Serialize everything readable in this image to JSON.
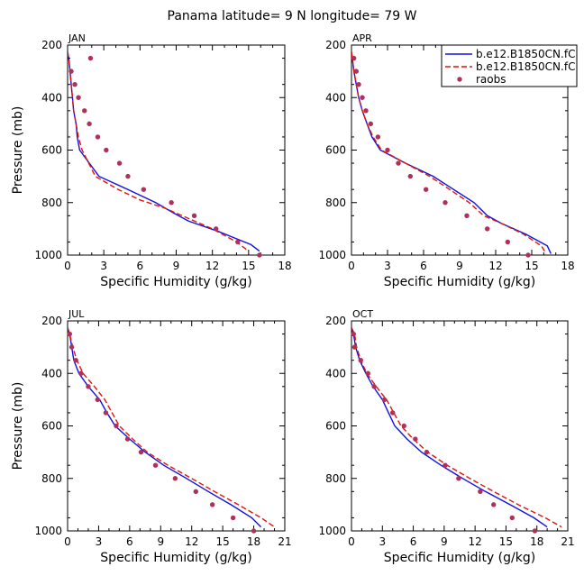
{
  "figure": {
    "title": "Panama  latitude= 9 N longitude= 79 W"
  },
  "colors": {
    "model1": "#1010e0",
    "model2": "#e0140a",
    "raobs": "#b0305a"
  },
  "legend": {
    "items": [
      {
        "label": "b.e12.B1850CN.fC",
        "style": "solid",
        "color": "#1010e0"
      },
      {
        "label": "b.e12.B1850CN.fC",
        "style": "dashed",
        "color": "#e0140a"
      },
      {
        "label": "raobs",
        "style": "dot",
        "color": "#b0305a"
      }
    ]
  },
  "chart_data": [
    {
      "type": "line",
      "panel_label": "JAN",
      "xlabel": "Specific Humidity (g/kg)",
      "ylabel": "Pressure (mb)",
      "xlim": [
        0,
        18
      ],
      "xticks": [
        0,
        3,
        6,
        9,
        12,
        15,
        18
      ],
      "ylim": [
        1000,
        200
      ],
      "yticks": [
        200,
        400,
        600,
        800,
        1000
      ],
      "series": [
        {
          "name": "b.e12.B1850CN.fC",
          "style": "solid",
          "color": "#1010e0",
          "points": [
            [
              0.0,
              225
            ],
            [
              0.1,
              250
            ],
            [
              0.2,
              300
            ],
            [
              0.3,
              350
            ],
            [
              0.4,
              400
            ],
            [
              0.5,
              450
            ],
            [
              0.7,
              500
            ],
            [
              0.8,
              550
            ],
            [
              1.0,
              600
            ],
            [
              2.6,
              700
            ],
            [
              5.0,
              750
            ],
            [
              7.3,
              800
            ],
            [
              8.8,
              840
            ],
            [
              10.0,
              870
            ],
            [
              12.5,
              910
            ],
            [
              15.2,
              960
            ],
            [
              15.9,
              985
            ]
          ]
        },
        {
          "name": "b.e12.B1850CN.fC",
          "style": "dashed",
          "color": "#e0140a",
          "points": [
            [
              0.0,
              225
            ],
            [
              0.1,
              250
            ],
            [
              0.2,
              300
            ],
            [
              0.3,
              350
            ],
            [
              0.4,
              400
            ],
            [
              0.5,
              450
            ],
            [
              0.7,
              500
            ],
            [
              0.9,
              550
            ],
            [
              1.2,
              600
            ],
            [
              2.3,
              700
            ],
            [
              4.2,
              750
            ],
            [
              6.0,
              790
            ],
            [
              8.0,
              820
            ],
            [
              9.5,
              850
            ],
            [
              12.0,
              900
            ],
            [
              14.0,
              950
            ],
            [
              15.0,
              985
            ]
          ]
        },
        {
          "name": "raobs",
          "style": "dots",
          "color": "#b0305a",
          "points": [
            [
              1.9,
              250
            ],
            [
              0.3,
              300
            ],
            [
              0.6,
              350
            ],
            [
              0.9,
              400
            ],
            [
              1.4,
              450
            ],
            [
              1.8,
              500
            ],
            [
              2.5,
              550
            ],
            [
              3.2,
              600
            ],
            [
              4.3,
              650
            ],
            [
              5.0,
              700
            ],
            [
              6.3,
              750
            ],
            [
              8.6,
              800
            ],
            [
              10.5,
              850
            ],
            [
              12.3,
              900
            ],
            [
              14.1,
              950
            ],
            [
              15.9,
              1000
            ]
          ]
        }
      ]
    },
    {
      "type": "line",
      "panel_label": "APR",
      "xlabel": "Specific Humidity (g/kg)",
      "ylabel": "",
      "xlim": [
        0,
        18
      ],
      "xticks": [
        0,
        3,
        6,
        9,
        12,
        15,
        18
      ],
      "ylim": [
        1000,
        200
      ],
      "yticks": [
        200,
        400,
        600,
        800,
        1000
      ],
      "series": [
        {
          "name": "b.e12.B1850CN.fC",
          "style": "solid",
          "color": "#1010e0",
          "points": [
            [
              0.0,
              225
            ],
            [
              0.2,
              300
            ],
            [
              0.4,
              350
            ],
            [
              0.6,
              400
            ],
            [
              0.9,
              450
            ],
            [
              1.3,
              500
            ],
            [
              1.7,
              550
            ],
            [
              2.4,
              600
            ],
            [
              4.5,
              650
            ],
            [
              6.8,
              700
            ],
            [
              8.5,
              750
            ],
            [
              10.2,
              800
            ],
            [
              11.3,
              850
            ],
            [
              12.5,
              880
            ],
            [
              14.5,
              920
            ],
            [
              16.3,
              965
            ],
            [
              16.6,
              995
            ]
          ]
        },
        {
          "name": "b.e12.B1850CN.fC",
          "style": "dashed",
          "color": "#e0140a",
          "points": [
            [
              0.0,
              225
            ],
            [
              0.2,
              300
            ],
            [
              0.4,
              350
            ],
            [
              0.6,
              400
            ],
            [
              0.9,
              450
            ],
            [
              1.3,
              500
            ],
            [
              1.8,
              550
            ],
            [
              2.5,
              600
            ],
            [
              4.5,
              650
            ],
            [
              6.5,
              700
            ],
            [
              8.0,
              745
            ],
            [
              9.8,
              800
            ],
            [
              11.0,
              850
            ],
            [
              12.5,
              880
            ],
            [
              14.3,
              920
            ],
            [
              15.8,
              965
            ],
            [
              16.2,
              995
            ]
          ]
        },
        {
          "name": "raobs",
          "style": "dots",
          "color": "#b0305a",
          "points": [
            [
              0.2,
              250
            ],
            [
              0.4,
              300
            ],
            [
              0.6,
              350
            ],
            [
              0.9,
              400
            ],
            [
              1.2,
              450
            ],
            [
              1.6,
              500
            ],
            [
              2.2,
              550
            ],
            [
              3.0,
              600
            ],
            [
              3.9,
              650
            ],
            [
              4.9,
              700
            ],
            [
              6.2,
              750
            ],
            [
              7.8,
              800
            ],
            [
              9.6,
              850
            ],
            [
              11.3,
              900
            ],
            [
              13.0,
              950
            ],
            [
              14.7,
              1000
            ]
          ]
        }
      ]
    },
    {
      "type": "line",
      "panel_label": "JUL",
      "xlabel": "Specific Humidity (g/kg)",
      "ylabel": "Pressure (mb)",
      "xlim": [
        0,
        21
      ],
      "xticks": [
        0,
        3,
        6,
        9,
        12,
        15,
        18,
        21
      ],
      "ylim": [
        1000,
        200
      ],
      "yticks": [
        200,
        400,
        600,
        800,
        1000
      ],
      "series": [
        {
          "name": "b.e12.B1850CN.fC",
          "style": "solid",
          "color": "#1010e0",
          "points": [
            [
              0.0,
              225
            ],
            [
              0.2,
              250
            ],
            [
              0.4,
              300
            ],
            [
              0.6,
              350
            ],
            [
              1.1,
              400
            ],
            [
              2.0,
              450
            ],
            [
              3.1,
              500
            ],
            [
              3.8,
              550
            ],
            [
              4.6,
              600
            ],
            [
              6.0,
              650
            ],
            [
              7.5,
              700
            ],
            [
              9.3,
              750
            ],
            [
              11.5,
              800
            ],
            [
              13.6,
              850
            ],
            [
              15.8,
              900
            ],
            [
              17.8,
              950
            ],
            [
              18.7,
              985
            ]
          ]
        },
        {
          "name": "b.e12.B1850CN.fC",
          "style": "dashed",
          "color": "#e0140a",
          "points": [
            [
              0.0,
              225
            ],
            [
              0.2,
              250
            ],
            [
              0.5,
              300
            ],
            [
              0.9,
              350
            ],
            [
              1.5,
              400
            ],
            [
              2.6,
              450
            ],
            [
              3.6,
              500
            ],
            [
              4.3,
              550
            ],
            [
              5.0,
              600
            ],
            [
              6.3,
              650
            ],
            [
              7.7,
              700
            ],
            [
              9.7,
              750
            ],
            [
              12.0,
              800
            ],
            [
              14.2,
              850
            ],
            [
              16.5,
              900
            ],
            [
              18.7,
              950
            ],
            [
              20.0,
              985
            ]
          ]
        },
        {
          "name": "raobs",
          "style": "dots",
          "color": "#b0305a",
          "points": [
            [
              0.2,
              250
            ],
            [
              0.4,
              300
            ],
            [
              0.8,
              350
            ],
            [
              1.3,
              400
            ],
            [
              2.0,
              450
            ],
            [
              2.9,
              500
            ],
            [
              3.7,
              550
            ],
            [
              4.7,
              600
            ],
            [
              5.8,
              650
            ],
            [
              7.1,
              700
            ],
            [
              8.5,
              750
            ],
            [
              10.4,
              800
            ],
            [
              12.4,
              850
            ],
            [
              14.0,
              900
            ],
            [
              16.0,
              950
            ],
            [
              18.0,
              1000
            ]
          ]
        }
      ]
    },
    {
      "type": "line",
      "panel_label": "OCT",
      "xlabel": "Specific Humidity (g/kg)",
      "ylabel": "",
      "xlim": [
        0,
        21
      ],
      "xticks": [
        0,
        3,
        6,
        9,
        12,
        15,
        18,
        21
      ],
      "ylim": [
        1000,
        200
      ],
      "yticks": [
        200,
        400,
        600,
        800,
        1000
      ],
      "series": [
        {
          "name": "b.e12.B1850CN.fC",
          "style": "solid",
          "color": "#1010e0",
          "points": [
            [
              0.0,
              225
            ],
            [
              0.2,
              250
            ],
            [
              0.4,
              300
            ],
            [
              0.8,
              350
            ],
            [
              1.4,
              400
            ],
            [
              2.1,
              450
            ],
            [
              3.0,
              500
            ],
            [
              3.6,
              550
            ],
            [
              4.2,
              600
            ],
            [
              5.4,
              650
            ],
            [
              6.8,
              700
            ],
            [
              8.7,
              750
            ],
            [
              10.8,
              800
            ],
            [
              13.0,
              850
            ],
            [
              15.4,
              900
            ],
            [
              17.7,
              950
            ],
            [
              19.0,
              985
            ]
          ]
        },
        {
          "name": "b.e12.B1850CN.fC",
          "style": "dashed",
          "color": "#e0140a",
          "points": [
            [
              0.0,
              225
            ],
            [
              0.3,
              250
            ],
            [
              0.5,
              300
            ],
            [
              0.9,
              350
            ],
            [
              1.5,
              400
            ],
            [
              2.4,
              450
            ],
            [
              3.4,
              500
            ],
            [
              4.1,
              550
            ],
            [
              4.8,
              600
            ],
            [
              6.0,
              650
            ],
            [
              7.4,
              700
            ],
            [
              9.3,
              750
            ],
            [
              11.5,
              800
            ],
            [
              13.8,
              850
            ],
            [
              16.2,
              900
            ],
            [
              18.8,
              950
            ],
            [
              20.4,
              985
            ]
          ]
        },
        {
          "name": "raobs",
          "style": "dots",
          "color": "#b0305a",
          "points": [
            [
              0.2,
              250
            ],
            [
              0.3,
              300
            ],
            [
              0.9,
              350
            ],
            [
              1.6,
              400
            ],
            [
              2.2,
              450
            ],
            [
              3.2,
              500
            ],
            [
              4.0,
              550
            ],
            [
              5.1,
              600
            ],
            [
              6.2,
              650
            ],
            [
              7.3,
              700
            ],
            [
              9.1,
              750
            ],
            [
              10.4,
              800
            ],
            [
              12.5,
              850
            ],
            [
              13.8,
              900
            ],
            [
              15.6,
              950
            ],
            [
              17.8,
              1000
            ]
          ]
        }
      ]
    }
  ]
}
